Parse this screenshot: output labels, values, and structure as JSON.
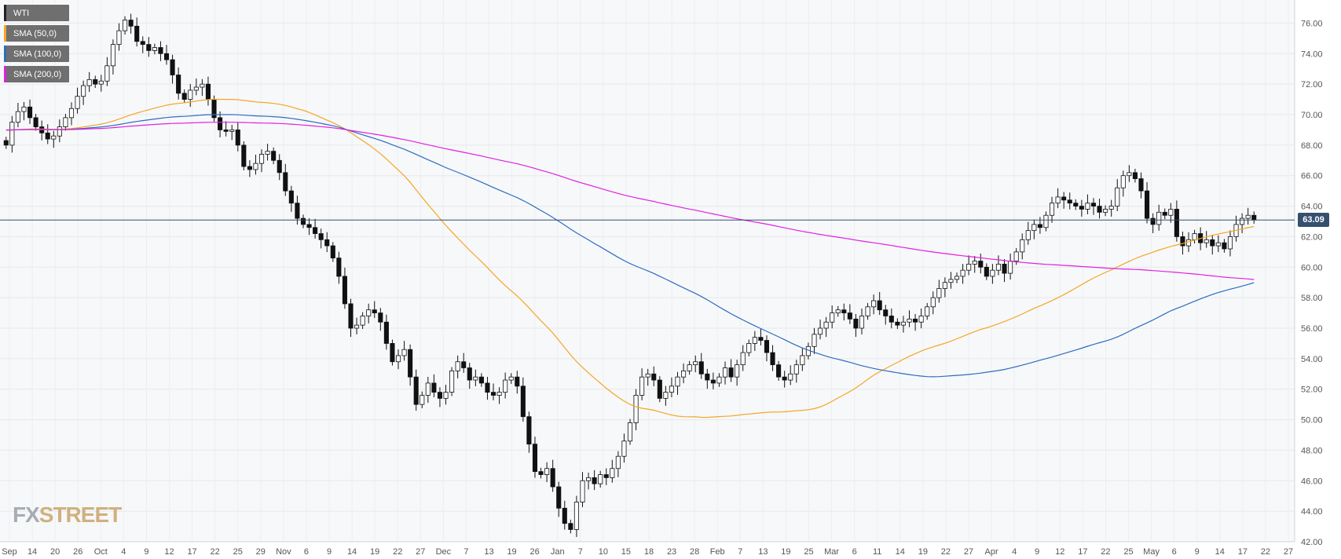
{
  "legend": [
    {
      "label": "WTI",
      "color": "#222222"
    },
    {
      "label": "SMA (50,0)",
      "color": "#f5a623"
    },
    {
      "label": "SMA (100,0)",
      "color": "#2d6cc0"
    },
    {
      "label": "SMA (200,0)",
      "color": "#e020e0"
    }
  ],
  "price_badge": "63.09",
  "logo": {
    "fx": "FX",
    "street": "STREET"
  },
  "chart_data": {
    "type": "candlestick",
    "symbol": "WTI",
    "ylim": [
      42,
      77
    ],
    "y_ticks": [
      "42.00",
      "44.00",
      "46.00",
      "48.00",
      "50.00",
      "52.00",
      "54.00",
      "56.00",
      "58.00",
      "60.00",
      "62.00",
      "64.00",
      "66.00",
      "68.00",
      "70.00",
      "72.00",
      "74.00",
      "76.00"
    ],
    "x_tick_labels": [
      "Sep",
      "14",
      "20",
      "26",
      "Oct",
      "4",
      "9",
      "12",
      "17",
      "22",
      "25",
      "29",
      "Nov",
      "6",
      "9",
      "14",
      "19",
      "22",
      "27",
      "Dec",
      "7",
      "13",
      "19",
      "26",
      "Jan",
      "7",
      "10",
      "15",
      "18",
      "23",
      "28",
      "Feb",
      "7",
      "13",
      "19",
      "25",
      "Mar",
      "6",
      "11",
      "14",
      "19",
      "22",
      "27",
      "Apr",
      "4",
      "9",
      "12",
      "17",
      "22",
      "25",
      "May",
      "6",
      "9",
      "14",
      "17",
      "22",
      "27"
    ],
    "horizontal_line": 63.09,
    "grid": true,
    "legend_position": "top-left",
    "close_series": [
      68.0,
      69.5,
      70.2,
      70.5,
      69.8,
      69.2,
      68.8,
      68.4,
      68.6,
      69.2,
      69.8,
      70.4,
      71.2,
      71.9,
      72.3,
      72.0,
      72.2,
      73.2,
      74.6,
      75.5,
      76.2,
      75.8,
      74.8,
      74.6,
      74.2,
      74.4,
      74.0,
      73.6,
      72.6,
      71.4,
      71.0,
      71.6,
      71.8,
      72.0,
      71.0,
      69.8,
      69.0,
      68.9,
      69.0,
      68.0,
      66.6,
      66.4,
      66.8,
      67.4,
      67.6,
      67.0,
      66.2,
      65.0,
      64.2,
      63.2,
      62.8,
      62.6,
      62.2,
      61.8,
      61.4,
      60.6,
      59.4,
      57.6,
      56.0,
      56.2,
      56.8,
      57.2,
      57.0,
      56.4,
      55.0,
      53.8,
      54.2,
      54.6,
      52.8,
      51.0,
      51.6,
      52.4,
      51.8,
      51.4,
      51.8,
      53.2,
      53.8,
      53.4,
      52.6,
      52.8,
      52.4,
      51.8,
      51.6,
      51.8,
      52.6,
      52.8,
      52.2,
      50.2,
      48.4,
      46.6,
      46.4,
      46.8,
      45.6,
      44.2,
      43.2,
      42.8,
      44.6,
      46.0,
      46.2,
      45.8,
      46.4,
      46.2,
      46.8,
      47.6,
      48.6,
      49.8,
      51.6,
      52.8,
      53.0,
      52.6,
      51.4,
      51.8,
      52.2,
      52.8,
      53.2,
      53.6,
      53.8,
      53.0,
      52.6,
      52.4,
      52.8,
      53.4,
      52.8,
      53.6,
      54.4,
      55.0,
      55.4,
      55.2,
      54.4,
      53.6,
      52.8,
      52.6,
      53.0,
      53.6,
      54.2,
      54.8,
      55.6,
      56.0,
      56.4,
      57.0,
      57.2,
      57.0,
      56.6,
      56.0,
      56.8,
      57.4,
      57.8,
      57.2,
      56.8,
      56.4,
      56.2,
      56.4,
      56.6,
      56.4,
      56.8,
      57.4,
      58.0,
      58.6,
      59.0,
      59.2,
      59.4,
      59.8,
      60.2,
      60.4,
      60.0,
      59.4,
      59.8,
      60.2,
      59.6,
      60.4,
      61.0,
      61.8,
      62.4,
      62.8,
      62.6,
      63.4,
      64.2,
      64.6,
      64.4,
      64.2,
      64.0,
      63.8,
      64.2,
      64.0,
      63.6,
      63.8,
      64.0,
      65.2,
      66.0,
      66.2,
      65.8,
      65.0,
      63.2,
      62.8,
      63.6,
      63.4,
      63.8,
      62.0,
      61.4,
      61.8,
      62.2,
      61.6,
      61.8,
      61.4,
      61.6,
      61.2,
      62.0,
      62.8,
      63.2,
      63.4,
      63.09
    ]
  }
}
